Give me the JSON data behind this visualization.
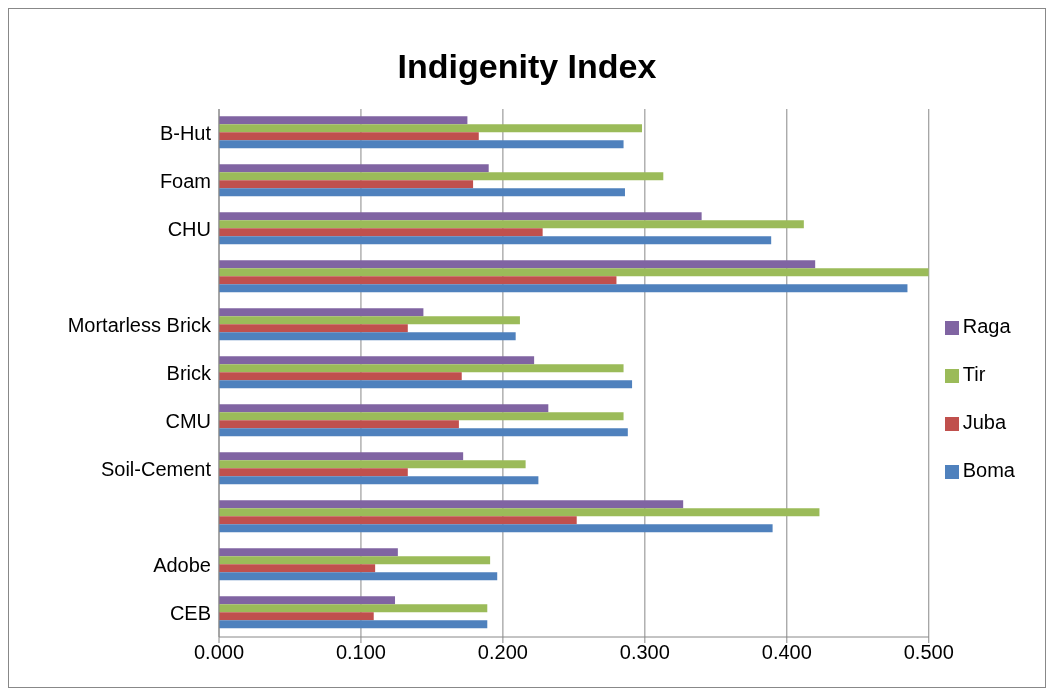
{
  "chart_data": {
    "type": "bar",
    "orientation": "horizontal",
    "title": "Indigenity Index",
    "categories": [
      "B-Hut",
      "Foam",
      "CHU",
      null,
      "Mortarless Brick",
      "Brick",
      "CMU",
      "Soil-Cement",
      null,
      "Adobe",
      "CEB"
    ],
    "series": [
      {
        "name": "Raga",
        "color": "#8064a2",
        "values": [
          0.175,
          0.19,
          0.34,
          0.42,
          0.144,
          0.222,
          0.232,
          0.172,
          0.327,
          0.126,
          0.124
        ]
      },
      {
        "name": "Tir",
        "color": "#9bbb59",
        "values": [
          0.298,
          0.313,
          0.412,
          0.5,
          0.212,
          0.285,
          0.285,
          0.216,
          0.423,
          0.191,
          0.189
        ]
      },
      {
        "name": "Juba",
        "color": "#c0504d",
        "values": [
          0.183,
          0.179,
          0.228,
          0.28,
          0.133,
          0.171,
          0.169,
          0.133,
          0.252,
          0.11,
          0.109
        ]
      },
      {
        "name": "Boma",
        "color": "#4f81bd",
        "values": [
          0.285,
          0.286,
          0.389,
          0.485,
          0.209,
          0.291,
          0.288,
          0.225,
          0.39,
          0.196,
          0.189
        ]
      }
    ],
    "xlim": [
      0,
      0.5
    ],
    "xticks": [
      {
        "value": 0,
        "label": "0.000"
      },
      {
        "value": 0.1,
        "label": "0.100"
      },
      {
        "value": 0.2,
        "label": "0.200"
      },
      {
        "value": 0.3,
        "label": "0.300"
      },
      {
        "value": 0.4,
        "label": "0.400"
      },
      {
        "value": 0.5,
        "label": "0.500"
      }
    ],
    "grid": "x",
    "legend": "right"
  }
}
